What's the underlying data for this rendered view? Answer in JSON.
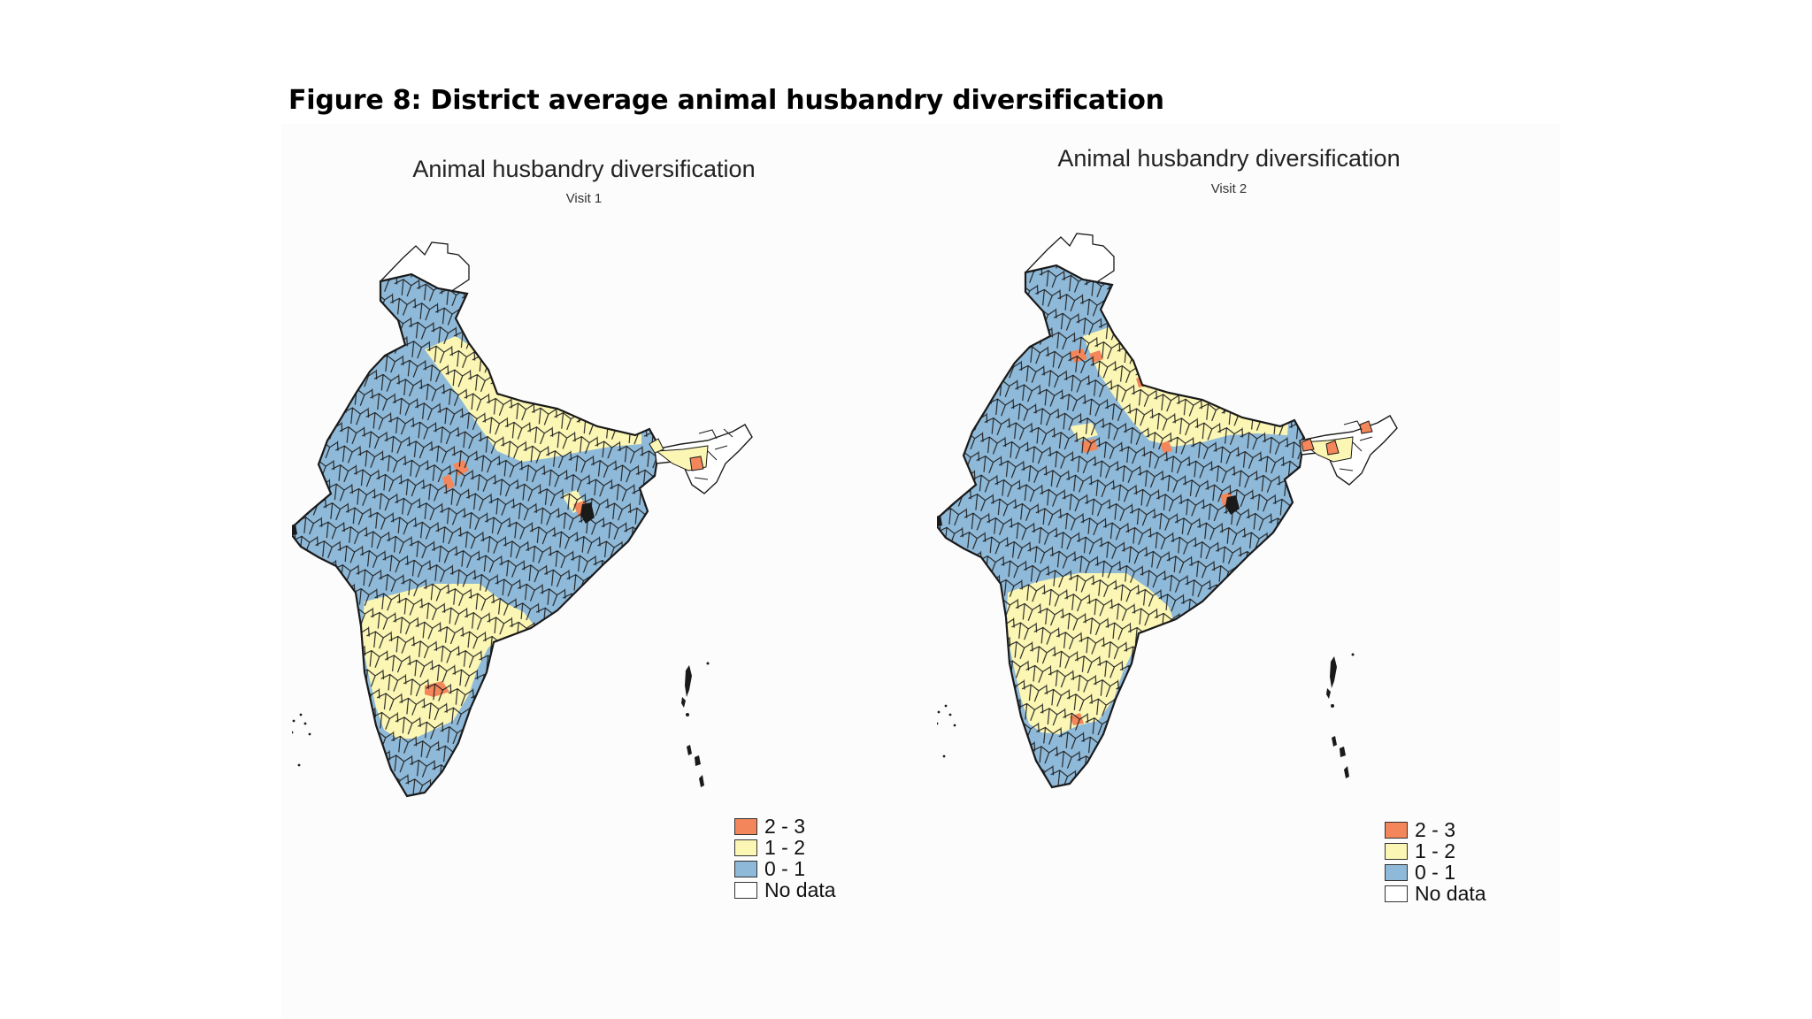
{
  "figure_title": "Figure 8: District average animal husbandry diversification",
  "maps": [
    {
      "title": "Animal husbandry diversification",
      "subtitle": "Visit 1"
    },
    {
      "title": "Animal husbandry diversification",
      "subtitle": "Visit 2"
    }
  ],
  "legend": [
    {
      "label": "2 - 3",
      "color": "#f3865a"
    },
    {
      "label": "1 - 2",
      "color": "#fbf6b4"
    },
    {
      "label": "0 - 1",
      "color": "#8fb9d8"
    },
    {
      "label": "No data",
      "color": "#ffffff"
    }
  ],
  "colors": {
    "border": "#1a1a1a",
    "panel_background": "#fdfcfd"
  }
}
